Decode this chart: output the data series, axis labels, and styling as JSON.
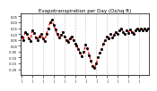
{
  "title": "Evapotranspiration per Day (Oz/sq ft)",
  "line_color": "#FF0000",
  "marker_color": "#000000",
  "bg_color": "#FFFFFF",
  "plot_bg_color": "#FFFFFF",
  "grid_color": "#888888",
  "values": [
    0.08,
    0.05,
    0.12,
    0.1,
    0.06,
    0.04,
    0.13,
    0.11,
    0.07,
    0.05,
    0.08,
    0.1,
    0.06,
    0.04,
    0.1,
    0.15,
    0.2,
    0.22,
    0.18,
    0.14,
    0.1,
    0.07,
    0.09,
    0.12,
    0.08,
    0.05,
    0.03,
    0.06,
    0.08,
    0.05,
    0.02,
    0.0,
    -0.03,
    -0.06,
    -0.09,
    -0.05,
    0.01,
    -0.02,
    -0.08,
    -0.13,
    -0.17,
    -0.19,
    -0.15,
    -0.1,
    -0.06,
    -0.03,
    0.02,
    0.05,
    0.08,
    0.06,
    0.1,
    0.07,
    0.09,
    0.12,
    0.1,
    0.13,
    0.15,
    0.12,
    0.1,
    0.13,
    0.11,
    0.14,
    0.12,
    0.1,
    0.13,
    0.15,
    0.13,
    0.15,
    0.13,
    0.15,
    0.13,
    0.15
  ],
  "x_tick_positions": [
    0,
    6,
    12,
    18,
    24,
    30,
    36,
    42,
    48,
    54,
    60,
    66
  ],
  "x_tick_labels": [
    "J",
    "J",
    "J",
    "J",
    "J",
    "J",
    "J",
    "J",
    "J",
    "J",
    "J",
    "J"
  ],
  "minor_x_positions": [
    1,
    2,
    3,
    4,
    5,
    7,
    8,
    9,
    10,
    11,
    13,
    14,
    15,
    16,
    17,
    19,
    20,
    21,
    22,
    23,
    25,
    26,
    27,
    28,
    29,
    31,
    32,
    33,
    34,
    35,
    37,
    38,
    39,
    40,
    41,
    43,
    44,
    45,
    46,
    47,
    49,
    50,
    51,
    52,
    53,
    55,
    56,
    57,
    58,
    59,
    61,
    62,
    63,
    64,
    65,
    67,
    68,
    69,
    70,
    71
  ],
  "ylim": [
    -0.25,
    0.28
  ],
  "ytick_values": [
    0.25,
    0.2,
    0.15,
    0.1,
    0.05,
    0.0,
    -0.05,
    -0.1,
    -0.15,
    -0.2
  ],
  "ytick_labels": [
    "0.25",
    "0.20",
    "0.15",
    "0.10",
    "0.05",
    "0.00",
    "-0.05",
    "-0.10",
    "-0.15",
    "-0.20"
  ],
  "fontsize_title": 4.0,
  "fontsize_ticks": 2.5,
  "linewidth": 0.9,
  "markersize": 1.2
}
